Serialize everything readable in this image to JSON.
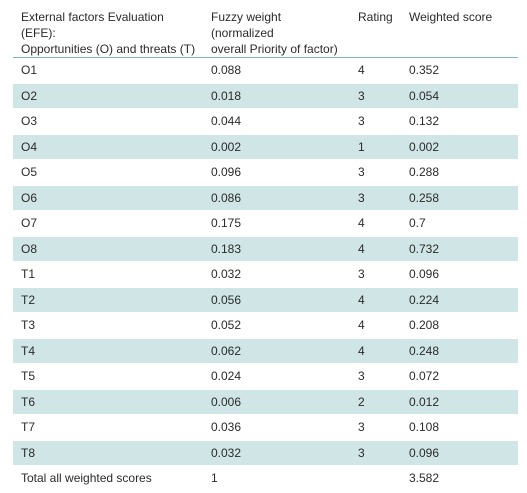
{
  "table": {
    "headers": {
      "factor_line1": "External factors Evaluation (EFE):",
      "factor_line2": "Opportunities (O) and threats (T)",
      "weight_line1": "Fuzzy weight (normalized",
      "weight_line2": "overall Priority of factor)",
      "rating": "Rating",
      "score": "Weighted score"
    },
    "rows": [
      {
        "factor": "O1",
        "weight": "0.088",
        "rating": "4",
        "score": "0.352"
      },
      {
        "factor": "O2",
        "weight": "0.018",
        "rating": "3",
        "score": "0.054"
      },
      {
        "factor": "O3",
        "weight": "0.044",
        "rating": "3",
        "score": "0.132"
      },
      {
        "factor": "O4",
        "weight": "0.002",
        "rating": "1",
        "score": "0.002"
      },
      {
        "factor": "O5",
        "weight": "0.096",
        "rating": "3",
        "score": "0.288"
      },
      {
        "factor": "O6",
        "weight": "0.086",
        "rating": "3",
        "score": "0.258"
      },
      {
        "factor": "O7",
        "weight": "0.175",
        "rating": "4",
        "score": "0.7"
      },
      {
        "factor": "O8",
        "weight": "0.183",
        "rating": "4",
        "score": "0.732"
      },
      {
        "factor": "T1",
        "weight": "0.032",
        "rating": "3",
        "score": "0.096"
      },
      {
        "factor": "T2",
        "weight": "0.056",
        "rating": "4",
        "score": "0.224"
      },
      {
        "factor": "T3",
        "weight": "0.052",
        "rating": "4",
        "score": "0.208"
      },
      {
        "factor": "T4",
        "weight": "0.062",
        "rating": "4",
        "score": "0.248"
      },
      {
        "factor": "T5",
        "weight": "0.024",
        "rating": "3",
        "score": "0.072"
      },
      {
        "factor": "T6",
        "weight": "0.006",
        "rating": "2",
        "score": "0.012"
      },
      {
        "factor": "T7",
        "weight": "0.036",
        "rating": "3",
        "score": "0.108"
      },
      {
        "factor": "T8",
        "weight": "0.032",
        "rating": "3",
        "score": "0.096"
      }
    ],
    "total": {
      "label": "Total all weighted scores",
      "weight": "1",
      "rating": "",
      "score": "3.582"
    }
  },
  "colors": {
    "shaded_row": "#cfe5e6",
    "header_rule": "#7fb7bd",
    "text": "#2b2b2b"
  }
}
